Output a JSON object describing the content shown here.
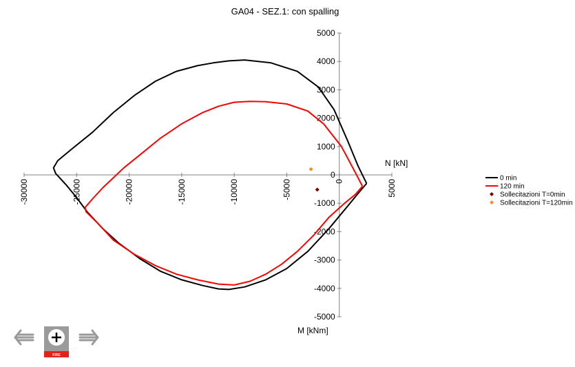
{
  "chart_data": {
    "type": "line",
    "title": "GA04 - SEZ.1: con spalling",
    "xlabel": "N [kN]",
    "ylabel": "M [kNm]",
    "xlim": [
      -30000,
      5000
    ],
    "ylim": [
      -5000,
      5000
    ],
    "x_ticks": [
      "-30000",
      "-25000",
      "-20000",
      "-15000",
      "-10000",
      "-5000",
      "0",
      "5000"
    ],
    "y_ticks": [
      "5000",
      "4000",
      "3000",
      "2000",
      "1000",
      "0",
      "-1000",
      "-2000",
      "-3000",
      "-4000",
      "-5000"
    ],
    "grid": false,
    "legend_position": "right",
    "series": [
      {
        "name": "0 min",
        "color": "#000000",
        "kind": "line",
        "points": [
          [
            2600,
            -300
          ],
          [
            1800,
            300
          ],
          [
            800,
            1200
          ],
          [
            -500,
            2300
          ],
          [
            -2000,
            3100
          ],
          [
            -4000,
            3650
          ],
          [
            -6500,
            3950
          ],
          [
            -9000,
            4050
          ],
          [
            -10500,
            4020
          ],
          [
            -12000,
            3950
          ],
          [
            -13500,
            3850
          ],
          [
            -15500,
            3650
          ],
          [
            -17500,
            3300
          ],
          [
            -19500,
            2800
          ],
          [
            -21500,
            2200
          ],
          [
            -23500,
            1500
          ],
          [
            -25500,
            900
          ],
          [
            -26800,
            500
          ],
          [
            -27200,
            250
          ],
          [
            -27000,
            50
          ],
          [
            -26000,
            -350
          ],
          [
            -25000,
            -800
          ],
          [
            -24000,
            -1300
          ],
          [
            -22500,
            -1900
          ],
          [
            -21000,
            -2400
          ],
          [
            -19000,
            -2950
          ],
          [
            -17000,
            -3400
          ],
          [
            -15000,
            -3700
          ],
          [
            -13000,
            -3900
          ],
          [
            -11500,
            -4020
          ],
          [
            -10500,
            -4040
          ],
          [
            -9000,
            -3950
          ],
          [
            -7000,
            -3700
          ],
          [
            -5000,
            -3300
          ],
          [
            -3000,
            -2700
          ],
          [
            -1000,
            -1900
          ],
          [
            800,
            -1100
          ],
          [
            1800,
            -650
          ],
          [
            2600,
            -300
          ]
        ]
      },
      {
        "name": "120 min",
        "color": "#ff0000",
        "kind": "line",
        "points": [
          [
            2200,
            -400
          ],
          [
            1500,
            100
          ],
          [
            200,
            1000
          ],
          [
            -1500,
            1800
          ],
          [
            -3000,
            2250
          ],
          [
            -5000,
            2500
          ],
          [
            -7000,
            2580
          ],
          [
            -8500,
            2590
          ],
          [
            -10000,
            2560
          ],
          [
            -11500,
            2420
          ],
          [
            -13000,
            2200
          ],
          [
            -15000,
            1800
          ],
          [
            -17000,
            1300
          ],
          [
            -19000,
            700
          ],
          [
            -20500,
            250
          ],
          [
            -21500,
            -100
          ],
          [
            -22500,
            -450
          ],
          [
            -23500,
            -850
          ],
          [
            -24200,
            -1150
          ],
          [
            -24100,
            -1300
          ],
          [
            -23000,
            -1700
          ],
          [
            -21500,
            -2300
          ],
          [
            -19500,
            -2800
          ],
          [
            -17500,
            -3200
          ],
          [
            -15500,
            -3500
          ],
          [
            -13500,
            -3700
          ],
          [
            -11500,
            -3850
          ],
          [
            -10000,
            -3880
          ],
          [
            -8500,
            -3750
          ],
          [
            -7000,
            -3500
          ],
          [
            -5500,
            -3150
          ],
          [
            -4000,
            -2700
          ],
          [
            -2500,
            -2150
          ],
          [
            -1000,
            -1500
          ],
          [
            500,
            -1000
          ],
          [
            1500,
            -700
          ],
          [
            2200,
            -400
          ]
        ]
      },
      {
        "name": "Sollecitazioni T=0min",
        "color": "#7f0000",
        "kind": "marker",
        "points": [
          [
            -2100,
            -520
          ]
        ]
      },
      {
        "name": "Sollecitazioni T=120min",
        "color": "#ff8c1a",
        "kind": "marker",
        "points": [
          [
            -2700,
            200
          ]
        ]
      }
    ]
  },
  "nav": {
    "center_label": "FIRE"
  }
}
